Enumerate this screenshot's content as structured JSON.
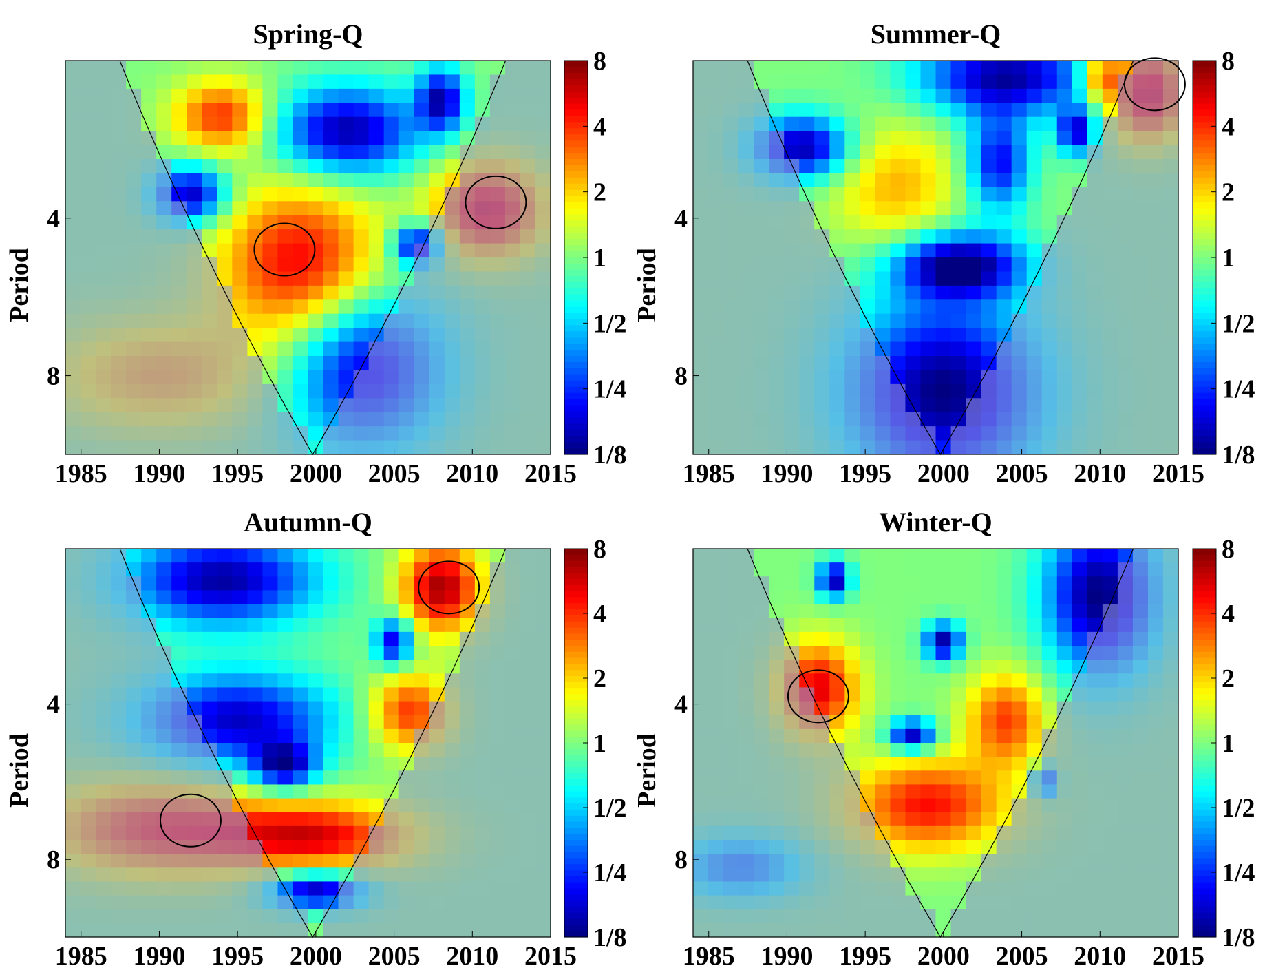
{
  "chart_data": [
    {
      "type": "heatmap",
      "title": "Spring-Q",
      "ylabel": "Period",
      "x_ticks": [
        "1985",
        "1990",
        "1995",
        "2000",
        "2005",
        "2010",
        "2015"
      ],
      "y_ticks": [
        "4",
        "8"
      ],
      "colorbar_ticks": [
        "8",
        "4",
        "2",
        "1",
        "1/2",
        "1/4",
        "1/8"
      ],
      "xlim": [
        1984,
        2015
      ],
      "ylim_log2_period": [
        1,
        3.5
      ],
      "hotspots": [
        {
          "year": 1994,
          "log2p": 1.35,
          "value": 2.0,
          "rx": 3.0,
          "ry": 0.22
        },
        {
          "year": 2002,
          "log2p": 1.45,
          "value": -2.8,
          "rx": 4.5,
          "ry": 0.28
        },
        {
          "year": 2008,
          "log2p": 1.25,
          "value": -2.6,
          "rx": 1.5,
          "ry": 0.2
        },
        {
          "year": 1992,
          "log2p": 1.85,
          "value": -2.7,
          "rx": 2.2,
          "ry": 0.18
        },
        {
          "year": 1999,
          "log2p": 2.3,
          "value": 2.4,
          "rx": 5.0,
          "ry": 0.5
        },
        {
          "year": 2011,
          "log2p": 1.95,
          "value": 2.4,
          "rx": 3.5,
          "ry": 0.3
        },
        {
          "year": 2006.5,
          "log2p": 2.17,
          "value": -2.8,
          "rx": 1.5,
          "ry": 0.13
        },
        {
          "year": 2003,
          "log2p": 2.95,
          "value": -2.5,
          "rx": 5.0,
          "ry": 0.5
        },
        {
          "year": 1990,
          "log2p": 3.0,
          "value": 1.2,
          "rx": 7.0,
          "ry": 0.35
        }
      ],
      "significant_regions": [
        {
          "year": 1998,
          "log2p": 2.2
        },
        {
          "year": 2011.5,
          "log2p": 1.9
        }
      ]
    },
    {
      "type": "heatmap",
      "title": "Summer-Q",
      "ylabel": "Period",
      "x_ticks": [
        "1985",
        "1990",
        "1995",
        "2000",
        "2005",
        "2010",
        "2015"
      ],
      "y_ticks": [
        "4",
        "8"
      ],
      "colorbar_ticks": [
        "8",
        "4",
        "2",
        "1",
        "1/2",
        "1/4",
        "1/8"
      ],
      "xlim": [
        1984,
        2015
      ],
      "ylim_log2_period": [
        1,
        3.5
      ],
      "hotspots": [
        {
          "year": 2004,
          "log2p": 1.1,
          "value": -2.8,
          "rx": 5.5,
          "ry": 0.25
        },
        {
          "year": 1991,
          "log2p": 1.55,
          "value": -2.8,
          "rx": 3.0,
          "ry": 0.2
        },
        {
          "year": 2008.5,
          "log2p": 1.45,
          "value": -2.5,
          "rx": 1.2,
          "ry": 0.15
        },
        {
          "year": 2003.5,
          "log2p": 1.65,
          "value": -2.3,
          "rx": 2.0,
          "ry": 0.3
        },
        {
          "year": 1997,
          "log2p": 1.8,
          "value": 1.2,
          "rx": 4.0,
          "ry": 0.4
        },
        {
          "year": 2001,
          "log2p": 2.3,
          "value": -3.0,
          "rx": 4.0,
          "ry": 0.2
        },
        {
          "year": 2000,
          "log2p": 3.1,
          "value": -3.0,
          "rx": 6.0,
          "ry": 0.6
        },
        {
          "year": 2013,
          "log2p": 1.2,
          "value": 2.6,
          "rx": 2.5,
          "ry": 0.3
        },
        {
          "year": 2010,
          "log2p": 1.1,
          "value": 1.8,
          "rx": 1.2,
          "ry": 0.15
        }
      ],
      "significant_regions": [
        {
          "year": 2013.5,
          "log2p": 1.15
        }
      ]
    },
    {
      "type": "heatmap",
      "title": "Autumn-Q",
      "ylabel": "Period",
      "x_ticks": [
        "1985",
        "1990",
        "1995",
        "2000",
        "2005",
        "2010",
        "2015"
      ],
      "y_ticks": [
        "4",
        "8"
      ],
      "colorbar_ticks": [
        "8",
        "4",
        "2",
        "1",
        "1/2",
        "1/4",
        "1/8"
      ],
      "xlim": [
        1984,
        2015
      ],
      "ylim_log2_period": [
        1,
        3.5
      ],
      "hotspots": [
        {
          "year": 1994,
          "log2p": 1.2,
          "value": -2.8,
          "rx": 6.0,
          "ry": 0.3
        },
        {
          "year": 2008,
          "log2p": 1.25,
          "value": 2.8,
          "rx": 2.5,
          "ry": 0.28
        },
        {
          "year": 2005,
          "log2p": 1.6,
          "value": -2.5,
          "rx": 1.2,
          "ry": 0.15
        },
        {
          "year": 1995,
          "log2p": 2.1,
          "value": -2.6,
          "rx": 6.0,
          "ry": 0.3
        },
        {
          "year": 1998,
          "log2p": 2.4,
          "value": -2.5,
          "rx": 2.0,
          "ry": 0.15
        },
        {
          "year": 2006,
          "log2p": 2.05,
          "value": 2.0,
          "rx": 2.5,
          "ry": 0.25
        },
        {
          "year": 2000,
          "log2p": 2.85,
          "value": 2.3,
          "rx": 6.0,
          "ry": 0.22
        },
        {
          "year": 2000,
          "log2p": 3.2,
          "value": -2.8,
          "rx": 3.0,
          "ry": 0.12
        },
        {
          "year": 1990,
          "log2p": 2.8,
          "value": 2.0,
          "rx": 7.0,
          "ry": 0.3
        }
      ],
      "significant_regions": [
        {
          "year": 2008.5,
          "log2p": 1.25
        },
        {
          "year": 1992,
          "log2p": 2.75
        }
      ]
    },
    {
      "type": "heatmap",
      "title": "Winter-Q",
      "ylabel": "Period",
      "x_ticks": [
        "1985",
        "1990",
        "1995",
        "2000",
        "2005",
        "2010",
        "2015"
      ],
      "y_ticks": [
        "4",
        "8"
      ],
      "colorbar_ticks": [
        "8",
        "4",
        "2",
        "1",
        "1/2",
        "1/4",
        "1/8"
      ],
      "xlim": [
        1984,
        2015
      ],
      "ylim_log2_period": [
        1,
        3.5
      ],
      "hotspots": [
        {
          "year": 1992,
          "log2p": 1.9,
          "value": 2.4,
          "rx": 2.5,
          "ry": 0.3
        },
        {
          "year": 1993,
          "log2p": 1.2,
          "value": -2.8,
          "rx": 1.0,
          "ry": 0.12
        },
        {
          "year": 2000,
          "log2p": 1.6,
          "value": -2.8,
          "rx": 1.2,
          "ry": 0.12
        },
        {
          "year": 1998,
          "log2p": 2.2,
          "value": -2.8,
          "rx": 1.5,
          "ry": 0.1
        },
        {
          "year": 2010,
          "log2p": 1.3,
          "value": -3.0,
          "rx": 3.5,
          "ry": 0.5
        },
        {
          "year": 2004,
          "log2p": 2.1,
          "value": 1.9,
          "rx": 2.5,
          "ry": 0.3
        },
        {
          "year": 1999,
          "log2p": 2.65,
          "value": 2.2,
          "rx": 5.0,
          "ry": 0.3
        },
        {
          "year": 2006.5,
          "log2p": 2.5,
          "value": -2.0,
          "rx": 0.8,
          "ry": 0.1
        },
        {
          "year": 1987,
          "log2p": 3.05,
          "value": -1.5,
          "rx": 4.0,
          "ry": 0.2
        }
      ],
      "significant_regions": [
        {
          "year": 1992,
          "log2p": 1.95
        }
      ]
    }
  ]
}
